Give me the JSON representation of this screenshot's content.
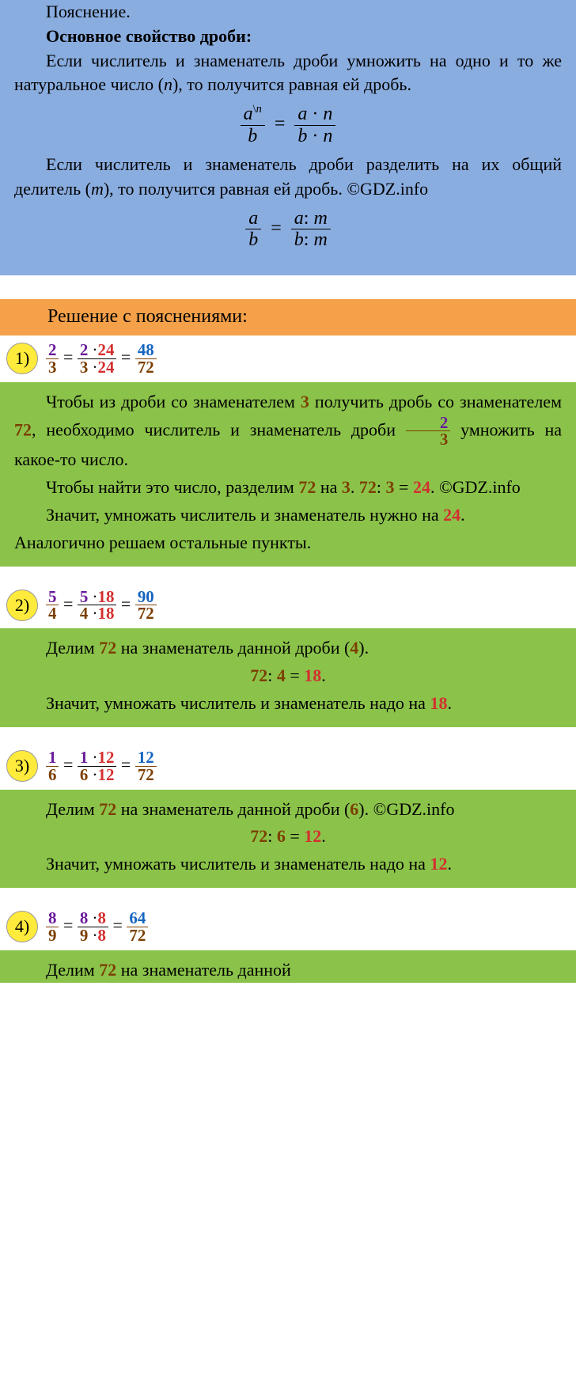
{
  "watermark_text": "GDZ.INFO",
  "watermark_color": "rgba(100,100,100,0.25)",
  "watermark_fontsize": 11,
  "blue_box": {
    "bg": "#8aade0",
    "p1": "Пояснение.",
    "title": "Основное свойство дроби:",
    "p2": "Если числитель и знаменатель дроби умножить на одно и то же натуральное число (",
    "p2_var": "n",
    "p2_end": "), то получится равная ей дробь.",
    "formula1": {
      "a": "a",
      "b": "b",
      "n": "n"
    },
    "p3": "Если числитель и знаменатель дроби разделить на их общий делитель (",
    "p3_var": "m",
    "p3_end": "), то получится равная ей дробь. ©GDZ.info",
    "formula2": {
      "a": "a",
      "b": "b",
      "m": "m"
    }
  },
  "orange_bar": {
    "bg": "#f5a14a",
    "text": "Решение с пояснениями:"
  },
  "colors": {
    "purple": "#6a1b9a",
    "brown": "#7b3f00",
    "red": "#d32f2f",
    "blue": "#1565c0",
    "green_bg": "#8bc34a",
    "badge_bg": "#ffeb3b"
  },
  "problems": [
    {
      "num": "1)",
      "frac_orig": {
        "n": "2",
        "d": "3"
      },
      "mult": "24",
      "frac_result": {
        "n": "48",
        "d": "72"
      },
      "explain": {
        "p1a": "Чтобы из дроби со знаменателем ",
        "p1b": "3",
        "p1c": " получить дробь со знаменателем ",
        "p1d": "72",
        "p1e": ", необходимо числитель и знаменатель дроби ",
        "p1f": " умножить на какое-то число.",
        "p2a": "Чтобы найти это число, разделим ",
        "p2b": "72",
        "p2c": " на ",
        "p2d": "3",
        "p2e": ". ",
        "p2f": "72",
        "p2g": ": ",
        "p2h": "3",
        "p2i": " = ",
        "p2j": "24",
        "p2k": ". ©GDZ.info",
        "p3a": "Значит, умножать числитель и знаменатель нужно на ",
        "p3b": "24",
        "p3c": ".",
        "p4": "Аналогично решаем остальные пункты."
      }
    },
    {
      "num": "2)",
      "frac_orig": {
        "n": "5",
        "d": "4"
      },
      "mult": "18",
      "frac_result": {
        "n": "90",
        "d": "72"
      },
      "explain": {
        "p1a": "Делим ",
        "p1b": "72",
        "p1c": " на знаменатель данной дроби (",
        "p1d": "4",
        "p1e": ").",
        "calc_a": "72",
        "calc_b": ": ",
        "calc_c": "4",
        "calc_d": " = ",
        "calc_e": "18",
        "calc_f": ".",
        "p2a": "Значит, умножать числитель и знаменатель надо на ",
        "p2b": "18",
        "p2c": "."
      }
    },
    {
      "num": "3)",
      "frac_orig": {
        "n": "1",
        "d": "6"
      },
      "mult": "12",
      "frac_result": {
        "n": "12",
        "d": "72"
      },
      "explain": {
        "p1a": "Делим ",
        "p1b": "72",
        "p1c": " на знаменатель данной дроби (",
        "p1d": "6",
        "p1e": "). ©GDZ.info",
        "calc_a": "72",
        "calc_b": ": ",
        "calc_c": "6",
        "calc_d": " = ",
        "calc_e": "12",
        "calc_f": ".",
        "p2a": "Значит, умножать числитель и знаменатель надо на ",
        "p2b": "12",
        "p2c": "."
      }
    },
    {
      "num": "4)",
      "frac_orig": {
        "n": "8",
        "d": "9"
      },
      "mult": "8",
      "frac_result": {
        "n": "64",
        "d": "72"
      },
      "explain_partial": {
        "p1a": "Делим ",
        "p1b": "72",
        "p1c": " на знаменатель данной"
      }
    }
  ]
}
